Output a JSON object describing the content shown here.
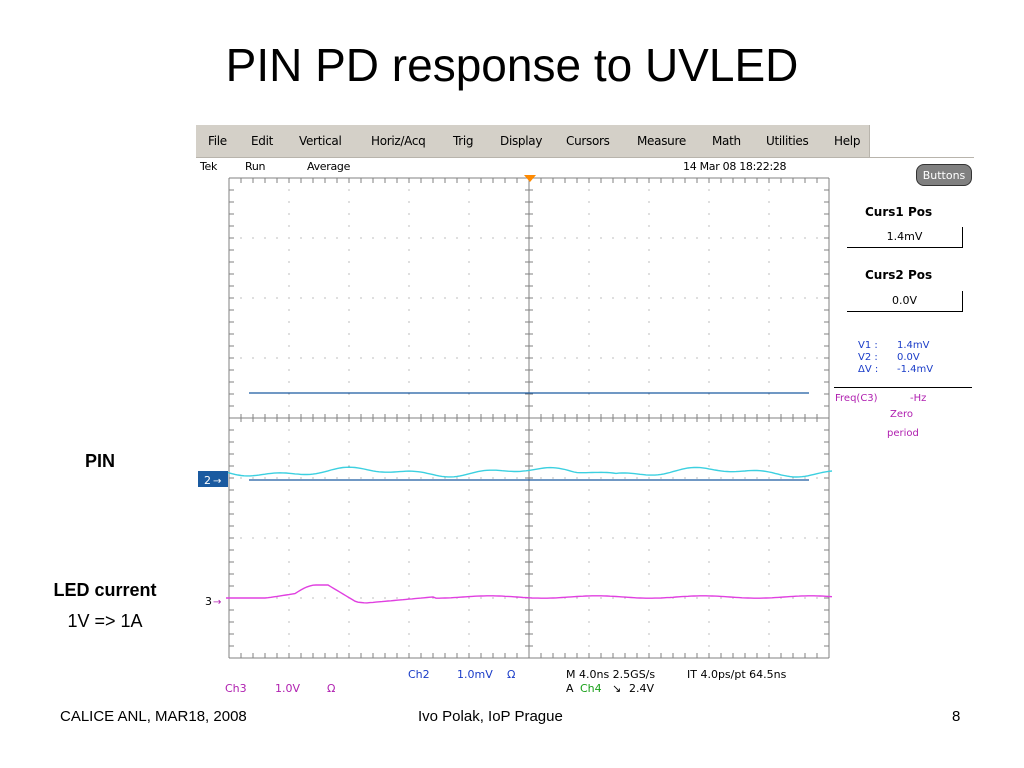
{
  "slide": {
    "title": "PIN PD response to UVLED",
    "label_pin": "PIN",
    "label_led": "LED current",
    "label_led_sub": "1V => 1A",
    "footer_left": "CALICE ANL, MAR18, 2008",
    "footer_center": "Ivo Polak, IoP Prague",
    "footer_right": "8"
  },
  "scope": {
    "menu": [
      "File",
      "Edit",
      "Vertical",
      "Horiz/Acq",
      "Trig",
      "Display",
      "Cursors",
      "Measure",
      "Math",
      "Utilities",
      "Help"
    ],
    "status": {
      "brand": "Tek",
      "run": "Run",
      "mode": "Average",
      "datetime": "14 Mar 08 18:22:28"
    },
    "buttons_label": "Buttons",
    "curs1": {
      "label": "Curs1 Pos",
      "value": "1.4mV"
    },
    "curs2": {
      "label": "Curs2 Pos",
      "value": "0.0V"
    },
    "readout": [
      {
        "name": "V1 :",
        "value": "1.4mV"
      },
      {
        "name": "V2 :",
        "value": "0.0V"
      },
      {
        "name": "ΔV :",
        "value": "-1.4mV"
      }
    ],
    "freq": {
      "label": "Freq(C3)",
      "value": "-Hz",
      "note1": "Zero",
      "note2": "period"
    },
    "channel_markers": {
      "ch2": "2",
      "ch3": "3"
    },
    "bottom": {
      "ch2_label": "Ch2",
      "ch2_scale": "1.0mV",
      "ch2_unit": "Ω",
      "ch3_label": "Ch3",
      "ch3_scale": "1.0V",
      "ch3_unit": "Ω",
      "horiz": "M 4.0ns 2.5GS/s",
      "interp": "IT 4.0ps/pt 64.5ns",
      "trig_prefix": "A",
      "trig_ch": "Ch4",
      "trig_slope": "↘",
      "trig_level": "2.4V"
    },
    "colors": {
      "ch2": "#3cd0e0",
      "ch3": "#e040e0",
      "cursor": "#1a5aa0",
      "trigger": "#ff8a00",
      "grid": "#808080"
    }
  }
}
